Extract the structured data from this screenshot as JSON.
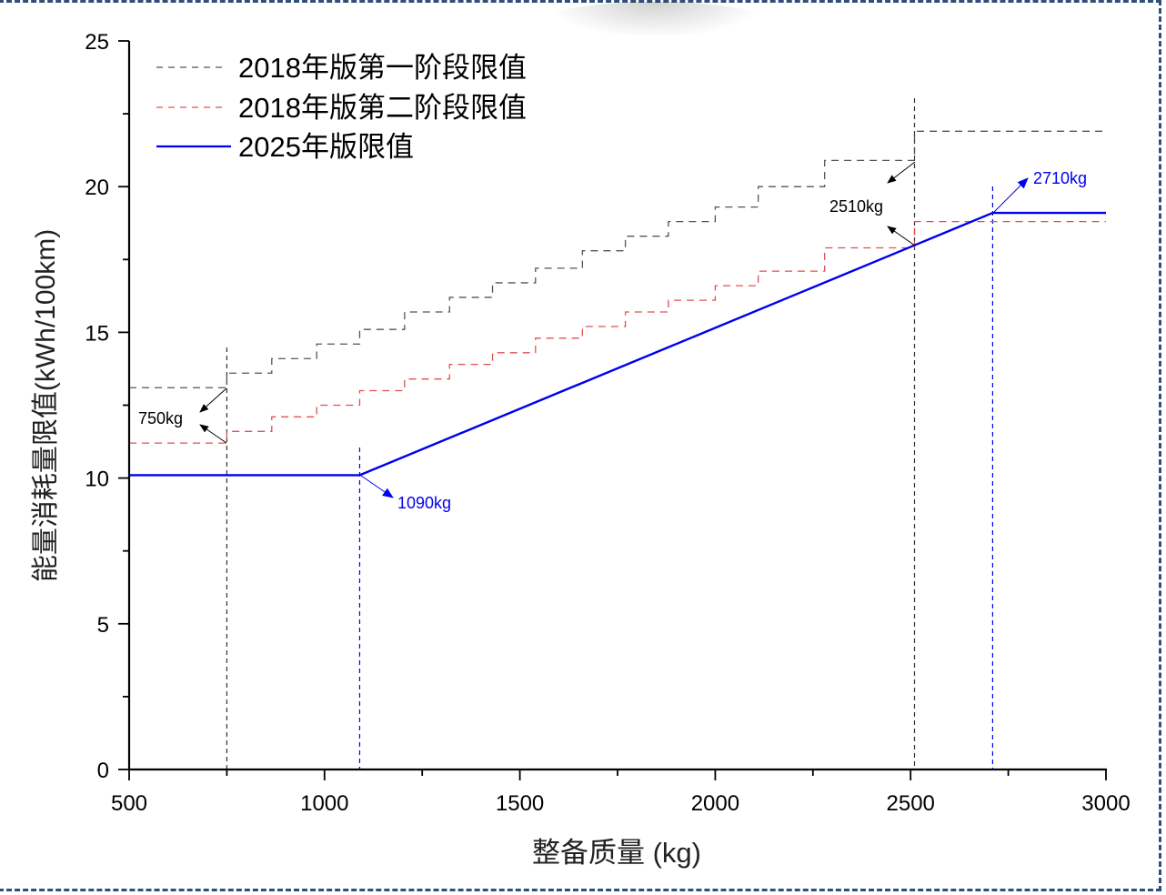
{
  "chart_data": {
    "type": "line",
    "title": "",
    "xlabel": "整备质量 (kg)",
    "ylabel": "能量消耗量限值(kWh/100km)",
    "xlim": [
      500,
      3000
    ],
    "ylim": [
      0,
      25
    ],
    "x_ticks": [
      500,
      1000,
      1500,
      2000,
      2500,
      3000
    ],
    "y_ticks": [
      0,
      5,
      10,
      15,
      20,
      25
    ],
    "grid": false,
    "legend_position": "upper-left",
    "series": [
      {
        "name": "2018年版第一阶段限值",
        "style": "step-dashed",
        "color": "#555555",
        "x_breaks": [
          500,
          750,
          865,
          980,
          1090,
          1205,
          1320,
          1430,
          1540,
          1660,
          1770,
          1880,
          2000,
          2110,
          2280,
          2510,
          3000
        ],
        "values": [
          13.1,
          13.6,
          14.1,
          14.6,
          15.1,
          15.7,
          16.2,
          16.7,
          17.2,
          17.8,
          18.3,
          18.8,
          19.3,
          20.0,
          20.9,
          21.9
        ]
      },
      {
        "name": "2018年版第二阶段限值",
        "style": "step-dashed",
        "color": "#e05050",
        "x_breaks": [
          500,
          750,
          865,
          980,
          1090,
          1205,
          1320,
          1430,
          1540,
          1660,
          1770,
          1880,
          2000,
          2110,
          2280,
          2510,
          3000
        ],
        "values": [
          11.2,
          11.6,
          12.1,
          12.5,
          13.0,
          13.4,
          13.9,
          14.3,
          14.8,
          15.2,
          15.7,
          16.1,
          16.6,
          17.1,
          17.9,
          18.8
        ]
      },
      {
        "name": "2025年版限值",
        "style": "solid",
        "color": "#0000ee",
        "x": [
          500,
          1090,
          2710,
          3000
        ],
        "y": [
          10.1,
          10.1,
          19.1,
          19.1
        ]
      }
    ],
    "vlines": [
      {
        "x": 750,
        "color": "#333333"
      },
      {
        "x": 1090,
        "color": "#0000ee"
      },
      {
        "x": 2510,
        "color": "#333333"
      },
      {
        "x": 2710,
        "color": "#0000ee"
      }
    ],
    "annotations": [
      {
        "text": "750kg",
        "color": "#000000"
      },
      {
        "text": "1090kg",
        "color": "#0000ee"
      },
      {
        "text": "2510kg",
        "color": "#000000"
      },
      {
        "text": "2710kg",
        "color": "#0000ee"
      }
    ]
  },
  "legend": [
    {
      "label": "2018年版第一阶段限值"
    },
    {
      "label": "2018年版第二阶段限值"
    },
    {
      "label": "2025年版限值"
    }
  ],
  "axes": {
    "xlabel": "整备质量 (kg)",
    "ylabel": "能量消耗量限值(kWh/100km)",
    "x_tick_labels": [
      "500",
      "1000",
      "1500",
      "2000",
      "2500",
      "3000"
    ],
    "y_tick_labels": [
      "0",
      "5",
      "10",
      "15",
      "20",
      "25"
    ]
  },
  "annotations": {
    "a750": "750kg",
    "a1090": "1090kg",
    "a2510": "2510kg",
    "a2710": "2710kg"
  }
}
